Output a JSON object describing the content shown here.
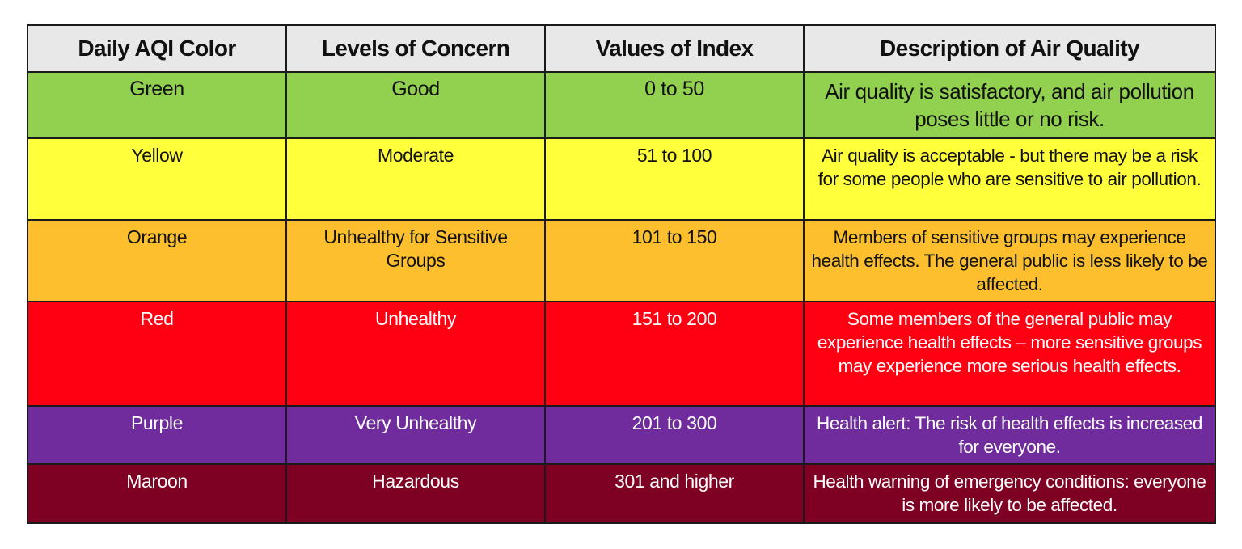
{
  "headers": [
    "Daily AQI Color",
    "Levels of Concern",
    "Values of Index",
    "Description of Air Quality"
  ],
  "rows": [
    {
      "color": "Green",
      "concern": "Good",
      "values": "0 to 50",
      "description": "Air quality is satisfactory, and air pollution poses little or no risk.",
      "bg": "#92d050",
      "fg": "#111111"
    },
    {
      "color": "Yellow",
      "concern": "Moderate",
      "values": "51 to 100",
      "description": "Air quality is acceptable - but there may be a risk for some people who are sensitive to air pollution.",
      "bg": "#ffff3c",
      "fg": "#111111"
    },
    {
      "color": "Orange",
      "concern": "Unhealthy for Sensitive Groups",
      "values": "101 to 150",
      "description": "Members of sensitive groups may experience health effects. The general public is less likely to be affected.",
      "bg": "#fdbf2d",
      "fg": "#111111"
    },
    {
      "color": "Red",
      "concern": "Unhealthy",
      "values": "151 to 200",
      "description": "Some members of the general public may experience health effects – more sensitive groups may experience more serious health effects.",
      "bg": "#ff0012",
      "fg": "#ffffff"
    },
    {
      "color": "Purple",
      "concern": "Very Unhealthy",
      "values": "201 to 300",
      "description": "Health alert: The risk of health effects is increased for everyone.",
      "bg": "#702c9c",
      "fg": "#ffffff"
    },
    {
      "color": "Maroon",
      "concern": "Hazardous",
      "values": "301 and higher",
      "description": "Health warning of emergency conditions: everyone is more likely to be affected.",
      "bg": "#7e0023",
      "fg": "#ffffff"
    }
  ]
}
